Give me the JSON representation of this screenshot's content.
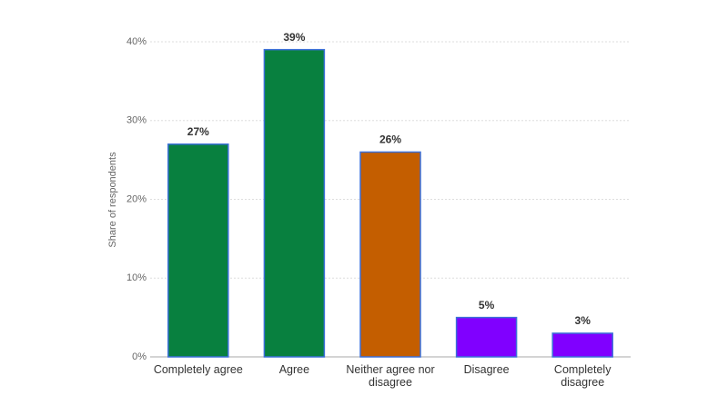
{
  "chart_data": {
    "type": "bar",
    "y_label": "Share of respondents",
    "categories": [
      "Completely agree",
      "Agree",
      "Neither agree nor disagree",
      "Disagree",
      "Completely disagree"
    ],
    "values": [
      27,
      39,
      26,
      5,
      3
    ],
    "value_labels": [
      "27%",
      "39%",
      "26%",
      "5%",
      "3%"
    ],
    "colors": [
      "#08803f",
      "#08803f",
      "#c45e00",
      "#8000ff",
      "#8000ff"
    ],
    "ylim": [
      0,
      40
    ],
    "yticks": [
      {
        "value": 0,
        "label": "0%"
      },
      {
        "value": 10,
        "label": "10%"
      },
      {
        "value": 20,
        "label": "20%"
      },
      {
        "value": 30,
        "label": "30%"
      },
      {
        "value": 40,
        "label": "40%"
      }
    ],
    "grid": true
  }
}
